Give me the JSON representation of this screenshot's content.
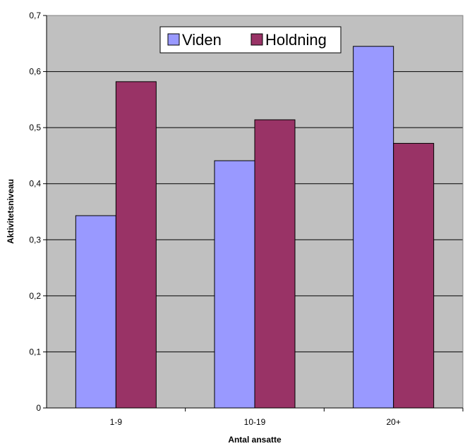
{
  "chart_data": {
    "type": "bar",
    "title": "",
    "xlabel": "Antal ansatte",
    "ylabel": "Aktivitetsniveau",
    "categories": [
      "1-9",
      "10-19",
      "20+"
    ],
    "series": [
      {
        "name": "Viden",
        "values": [
          0.343,
          0.441,
          0.645
        ],
        "color": "#9999ff"
      },
      {
        "name": "Holdning",
        "values": [
          0.582,
          0.514,
          0.472
        ],
        "color": "#993366"
      }
    ],
    "ylim": [
      0,
      0.7
    ],
    "yticks": [
      "0",
      "0,1",
      "0,2",
      "0,3",
      "0,4",
      "0,5",
      "0,6",
      "0,7"
    ],
    "grid": true,
    "legend_position": "top",
    "plot_background": "#c0c0c0"
  }
}
